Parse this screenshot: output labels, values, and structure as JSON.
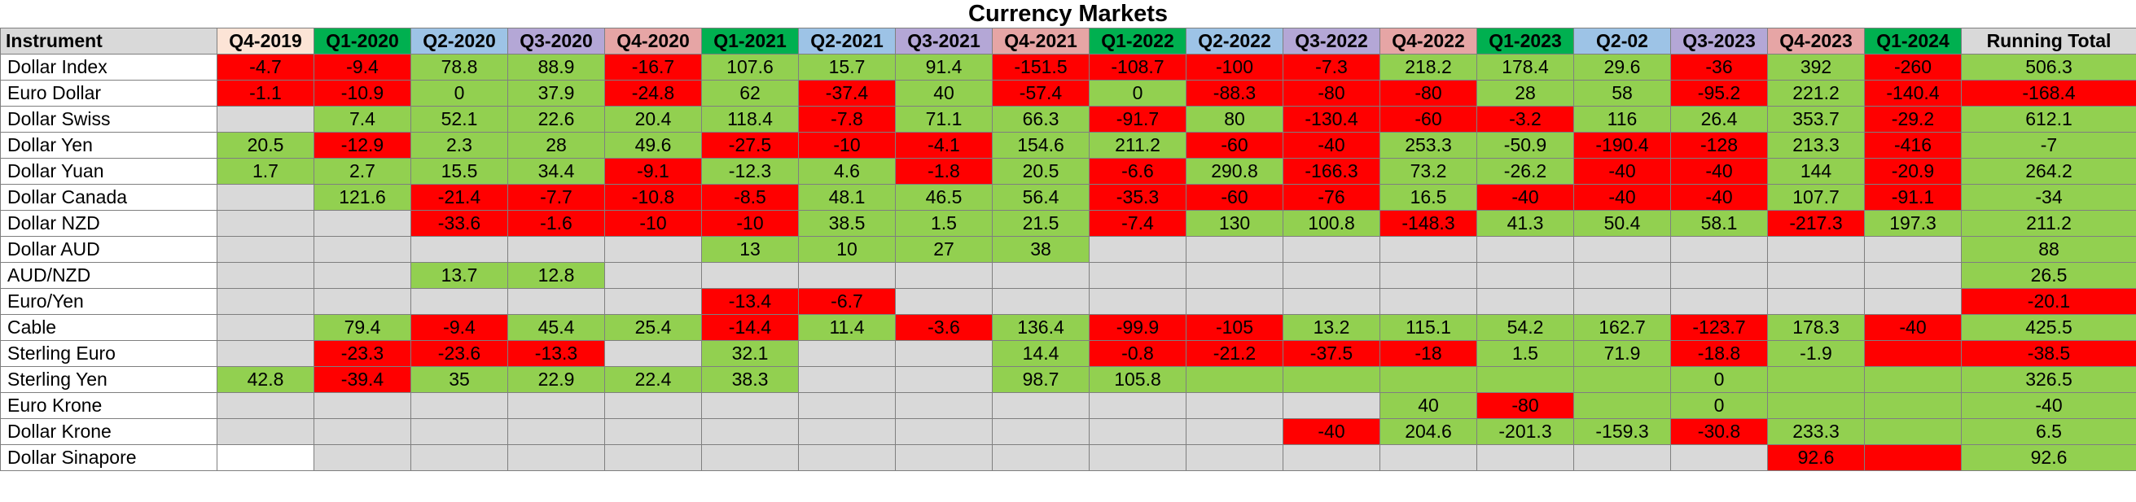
{
  "title": "Currency Markets",
  "header": {
    "instrument": "Instrument",
    "running_total": "Running Total",
    "running_total_color": "#d9d9d9",
    "quarters": [
      {
        "label": "Q4-2019",
        "color": "#fce4d6"
      },
      {
        "label": "Q1-2020",
        "color": "#00b050"
      },
      {
        "label": "Q2-2020",
        "color": "#9dc3e6"
      },
      {
        "label": "Q3-2020",
        "color": "#b4a7d6"
      },
      {
        "label": "Q4-2020",
        "color": "#e6a5a5"
      },
      {
        "label": "Q1-2021",
        "color": "#00b050"
      },
      {
        "label": "Q2-2021",
        "color": "#9dc3e6"
      },
      {
        "label": "Q3-2021",
        "color": "#b4a7d6"
      },
      {
        "label": "Q4-2021",
        "color": "#e6a5a5"
      },
      {
        "label": "Q1-2022",
        "color": "#00b050"
      },
      {
        "label": "Q2-2022",
        "color": "#9dc3e6"
      },
      {
        "label": "Q3-2022",
        "color": "#b4a7d6"
      },
      {
        "label": "Q4-2022",
        "color": "#e6a5a5"
      },
      {
        "label": "Q1-2023",
        "color": "#00b050"
      },
      {
        "label": "Q2-02",
        "color": "#9dc3e6"
      },
      {
        "label": "Q3-2023",
        "color": "#b4a7d6"
      },
      {
        "label": "Q4-2023",
        "color": "#e6a5a5"
      },
      {
        "label": "Q1-2024",
        "color": "#00b050"
      }
    ]
  },
  "rows": [
    {
      "name": "Dollar Index",
      "cells": [
        [
          "-4.7",
          "r"
        ],
        [
          "-9.4",
          "r"
        ],
        [
          "78.8",
          "g"
        ],
        [
          "88.9",
          "g"
        ],
        [
          "-16.7",
          "r"
        ],
        [
          "107.6",
          "g"
        ],
        [
          "15.7",
          "g"
        ],
        [
          "91.4",
          "g"
        ],
        [
          "-151.5",
          "r"
        ],
        [
          "-108.7",
          "r"
        ],
        [
          "-100",
          "r"
        ],
        [
          "-7.3",
          "r"
        ],
        [
          "218.2",
          "g"
        ],
        [
          "178.4",
          "g"
        ],
        [
          "29.6",
          "g"
        ],
        [
          "-36",
          "r"
        ],
        [
          "392",
          "g"
        ],
        [
          "-260",
          "r"
        ]
      ],
      "total": [
        "506.3",
        "g"
      ]
    },
    {
      "name": "Euro Dollar",
      "cells": [
        [
          "-1.1",
          "r"
        ],
        [
          "-10.9",
          "r"
        ],
        [
          "0",
          "g"
        ],
        [
          "37.9",
          "g"
        ],
        [
          "-24.8",
          "r"
        ],
        [
          "62",
          "g"
        ],
        [
          "-37.4",
          "r"
        ],
        [
          "40",
          "g"
        ],
        [
          "-57.4",
          "r"
        ],
        [
          "0",
          "g"
        ],
        [
          "-88.3",
          "r"
        ],
        [
          "-80",
          "r"
        ],
        [
          "-80",
          "r"
        ],
        [
          "28",
          "g"
        ],
        [
          "58",
          "g"
        ],
        [
          "-95.2",
          "r"
        ],
        [
          "221.2",
          "g"
        ],
        [
          "-140.4",
          "r"
        ]
      ],
      "total": [
        "-168.4",
        "r"
      ]
    },
    {
      "name": "Dollar Swiss",
      "cells": [
        [
          "",
          "x"
        ],
        [
          "7.4",
          "g"
        ],
        [
          "52.1",
          "g"
        ],
        [
          "22.6",
          "g"
        ],
        [
          "20.4",
          "g"
        ],
        [
          "118.4",
          "g"
        ],
        [
          "-7.8",
          "r"
        ],
        [
          "71.1",
          "g"
        ],
        [
          "66.3",
          "g"
        ],
        [
          "-91.7",
          "r"
        ],
        [
          "80",
          "g"
        ],
        [
          "-130.4",
          "r"
        ],
        [
          "-60",
          "r"
        ],
        [
          "-3.2",
          "r"
        ],
        [
          "116",
          "g"
        ],
        [
          "26.4",
          "g"
        ],
        [
          "353.7",
          "g"
        ],
        [
          "-29.2",
          "r"
        ]
      ],
      "total": [
        "612.1",
        "g"
      ]
    },
    {
      "name": "Dollar Yen",
      "cells": [
        [
          "20.5",
          "g"
        ],
        [
          "-12.9",
          "r"
        ],
        [
          "2.3",
          "g"
        ],
        [
          "28",
          "g"
        ],
        [
          "49.6",
          "g"
        ],
        [
          "-27.5",
          "r"
        ],
        [
          "-10",
          "r"
        ],
        [
          "-4.1",
          "r"
        ],
        [
          "154.6",
          "g"
        ],
        [
          "211.2",
          "g"
        ],
        [
          "-60",
          "r"
        ],
        [
          "-40",
          "r"
        ],
        [
          "253.3",
          "g"
        ],
        [
          "-50.9",
          "g"
        ],
        [
          "-190.4",
          "r"
        ],
        [
          "-128",
          "r"
        ],
        [
          "213.3",
          "g"
        ],
        [
          "-416",
          "r"
        ]
      ],
      "total": [
        "-7",
        "g"
      ]
    },
    {
      "name": "Dollar Yuan",
      "cells": [
        [
          "1.7",
          "g"
        ],
        [
          "2.7",
          "g"
        ],
        [
          "15.5",
          "g"
        ],
        [
          "34.4",
          "g"
        ],
        [
          "-9.1",
          "r"
        ],
        [
          "-12.3",
          "g"
        ],
        [
          "4.6",
          "g"
        ],
        [
          "-1.8",
          "r"
        ],
        [
          "20.5",
          "g"
        ],
        [
          "-6.6",
          "r"
        ],
        [
          "290.8",
          "g"
        ],
        [
          "-166.3",
          "r"
        ],
        [
          "73.2",
          "g"
        ],
        [
          "-26.2",
          "g"
        ],
        [
          "-40",
          "r"
        ],
        [
          "-40",
          "r"
        ],
        [
          "144",
          "g"
        ],
        [
          "-20.9",
          "r"
        ]
      ],
      "total": [
        "264.2",
        "g"
      ]
    },
    {
      "name": "Dollar Canada",
      "cells": [
        [
          "",
          "x"
        ],
        [
          "121.6",
          "g"
        ],
        [
          "-21.4",
          "r"
        ],
        [
          "-7.7",
          "r"
        ],
        [
          "-10.8",
          "r"
        ],
        [
          "-8.5",
          "r"
        ],
        [
          "48.1",
          "g"
        ],
        [
          "46.5",
          "g"
        ],
        [
          "56.4",
          "g"
        ],
        [
          "-35.3",
          "r"
        ],
        [
          "-60",
          "r"
        ],
        [
          "-76",
          "r"
        ],
        [
          "16.5",
          "g"
        ],
        [
          "-40",
          "r"
        ],
        [
          "-40",
          "r"
        ],
        [
          "-40",
          "r"
        ],
        [
          "107.7",
          "g"
        ],
        [
          "-91.1",
          "r"
        ]
      ],
      "total": [
        "-34",
        "g"
      ]
    },
    {
      "name": "Dollar NZD",
      "cells": [
        [
          "",
          "x"
        ],
        [
          "",
          "x"
        ],
        [
          "-33.6",
          "r"
        ],
        [
          "-1.6",
          "r"
        ],
        [
          "-10",
          "r"
        ],
        [
          "-10",
          "r"
        ],
        [
          "38.5",
          "g"
        ],
        [
          "1.5",
          "g"
        ],
        [
          "21.5",
          "g"
        ],
        [
          "-7.4",
          "r"
        ],
        [
          "130",
          "g"
        ],
        [
          "100.8",
          "g"
        ],
        [
          "-148.3",
          "r"
        ],
        [
          "41.3",
          "g"
        ],
        [
          "50.4",
          "g"
        ],
        [
          "58.1",
          "g"
        ],
        [
          "-217.3",
          "r"
        ],
        [
          "197.3",
          "g"
        ]
      ],
      "total": [
        "211.2",
        "g"
      ]
    },
    {
      "name": "Dollar AUD",
      "cells": [
        [
          "",
          "x"
        ],
        [
          "",
          "x"
        ],
        [
          "",
          "x"
        ],
        [
          "",
          "x"
        ],
        [
          "",
          "x"
        ],
        [
          "13",
          "g"
        ],
        [
          "10",
          "g"
        ],
        [
          "27",
          "g"
        ],
        [
          "38",
          "g"
        ],
        [
          "",
          "x"
        ],
        [
          "",
          "x"
        ],
        [
          "",
          "x"
        ],
        [
          "",
          "x"
        ],
        [
          "",
          "x"
        ],
        [
          "",
          "x"
        ],
        [
          "",
          "x"
        ],
        [
          "",
          "x"
        ],
        [
          "",
          "x"
        ]
      ],
      "total": [
        "88",
        "g"
      ]
    },
    {
      "name": "AUD/NZD",
      "cells": [
        [
          "",
          "x"
        ],
        [
          "",
          "x"
        ],
        [
          "13.7",
          "g"
        ],
        [
          "12.8",
          "g"
        ],
        [
          "",
          "x"
        ],
        [
          "",
          "x"
        ],
        [
          "",
          "x"
        ],
        [
          "",
          "x"
        ],
        [
          "",
          "x"
        ],
        [
          "",
          "x"
        ],
        [
          "",
          "x"
        ],
        [
          "",
          "x"
        ],
        [
          "",
          "x"
        ],
        [
          "",
          "x"
        ],
        [
          "",
          "x"
        ],
        [
          "",
          "x"
        ],
        [
          "",
          "x"
        ],
        [
          "",
          "x"
        ]
      ],
      "total": [
        "26.5",
        "g"
      ]
    },
    {
      "name": "Euro/Yen",
      "cells": [
        [
          "",
          "x"
        ],
        [
          "",
          "x"
        ],
        [
          "",
          "x"
        ],
        [
          "",
          "x"
        ],
        [
          "",
          "x"
        ],
        [
          "-13.4",
          "r"
        ],
        [
          "-6.7",
          "r"
        ],
        [
          "",
          "x"
        ],
        [
          "",
          "x"
        ],
        [
          "",
          "x"
        ],
        [
          "",
          "x"
        ],
        [
          "",
          "x"
        ],
        [
          "",
          "x"
        ],
        [
          "",
          "x"
        ],
        [
          "",
          "x"
        ],
        [
          "",
          "x"
        ],
        [
          "",
          "x"
        ],
        [
          "",
          "x"
        ]
      ],
      "total": [
        "-20.1",
        "r"
      ]
    },
    {
      "name": "Cable",
      "cells": [
        [
          "",
          "x"
        ],
        [
          "79.4",
          "g"
        ],
        [
          "-9.4",
          "r"
        ],
        [
          "45.4",
          "g"
        ],
        [
          "25.4",
          "g"
        ],
        [
          "-14.4",
          "r"
        ],
        [
          "11.4",
          "g"
        ],
        [
          "-3.6",
          "r"
        ],
        [
          "136.4",
          "g"
        ],
        [
          "-99.9",
          "r"
        ],
        [
          "-105",
          "r"
        ],
        [
          "13.2",
          "g"
        ],
        [
          "115.1",
          "g"
        ],
        [
          "54.2",
          "g"
        ],
        [
          "162.7",
          "g"
        ],
        [
          "-123.7",
          "r"
        ],
        [
          "178.3",
          "g"
        ],
        [
          "-40",
          "r"
        ]
      ],
      "total": [
        "425.5",
        "g"
      ]
    },
    {
      "name": "Sterling Euro",
      "cells": [
        [
          "",
          "x"
        ],
        [
          "-23.3",
          "r"
        ],
        [
          "-23.6",
          "r"
        ],
        [
          "-13.3",
          "r"
        ],
        [
          "",
          "x"
        ],
        [
          "32.1",
          "g"
        ],
        [
          "",
          "x"
        ],
        [
          "",
          "x"
        ],
        [
          "14.4",
          "g"
        ],
        [
          "-0.8",
          "r"
        ],
        [
          "-21.2",
          "r"
        ],
        [
          "-37.5",
          "r"
        ],
        [
          "-18",
          "r"
        ],
        [
          "1.5",
          "g"
        ],
        [
          "71.9",
          "g"
        ],
        [
          "-18.8",
          "r"
        ],
        [
          "-1.9",
          "g"
        ],
        [
          "",
          "r"
        ]
      ],
      "total": [
        "-38.5",
        "r"
      ]
    },
    {
      "name": "Sterling Yen",
      "cells": [
        [
          "42.8",
          "g"
        ],
        [
          "-39.4",
          "r"
        ],
        [
          "35",
          "g"
        ],
        [
          "22.9",
          "g"
        ],
        [
          "22.4",
          "g"
        ],
        [
          "38.3",
          "g"
        ],
        [
          "",
          "x"
        ],
        [
          "",
          "x"
        ],
        [
          "98.7",
          "g"
        ],
        [
          "105.8",
          "g"
        ],
        [
          "",
          "g"
        ],
        [
          "",
          "g"
        ],
        [
          "",
          "g"
        ],
        [
          "",
          "g"
        ],
        [
          "",
          "g"
        ],
        [
          "0",
          "g"
        ],
        [
          "",
          "g"
        ],
        [
          "",
          "g"
        ]
      ],
      "total": [
        "326.5",
        "g"
      ]
    },
    {
      "name": "Euro Krone",
      "cells": [
        [
          "",
          "x"
        ],
        [
          "",
          "x"
        ],
        [
          "",
          "x"
        ],
        [
          "",
          "x"
        ],
        [
          "",
          "x"
        ],
        [
          "",
          "x"
        ],
        [
          "",
          "x"
        ],
        [
          "",
          "x"
        ],
        [
          "",
          "x"
        ],
        [
          "",
          "x"
        ],
        [
          "",
          "x"
        ],
        [
          "",
          "x"
        ],
        [
          "40",
          "g"
        ],
        [
          "-80",
          "r"
        ],
        [
          "",
          "g"
        ],
        [
          "0",
          "g"
        ],
        [
          "",
          "g"
        ],
        [
          "",
          "g"
        ]
      ],
      "total": [
        "-40",
        "g"
      ]
    },
    {
      "name": "Dollar Krone",
      "cells": [
        [
          "",
          "x"
        ],
        [
          "",
          "x"
        ],
        [
          "",
          "x"
        ],
        [
          "",
          "x"
        ],
        [
          "",
          "x"
        ],
        [
          "",
          "x"
        ],
        [
          "",
          "x"
        ],
        [
          "",
          "x"
        ],
        [
          "",
          "x"
        ],
        [
          "",
          "x"
        ],
        [
          "",
          "x"
        ],
        [
          "-40",
          "r"
        ],
        [
          "204.6",
          "g"
        ],
        [
          "-201.3",
          "g"
        ],
        [
          "-159.3",
          "g"
        ],
        [
          "-30.8",
          "r"
        ],
        [
          "233.3",
          "g"
        ],
        [
          "",
          "g"
        ]
      ],
      "total": [
        "6.5",
        "g"
      ]
    },
    {
      "name": "Dollar Sinapore",
      "cells": [
        [
          "",
          "w"
        ],
        [
          "",
          "x"
        ],
        [
          "",
          "x"
        ],
        [
          "",
          "x"
        ],
        [
          "",
          "x"
        ],
        [
          "",
          "x"
        ],
        [
          "",
          "x"
        ],
        [
          "",
          "x"
        ],
        [
          "",
          "x"
        ],
        [
          "",
          "x"
        ],
        [
          "",
          "x"
        ],
        [
          "",
          "x"
        ],
        [
          "",
          "x"
        ],
        [
          "",
          "x"
        ],
        [
          "",
          "x"
        ],
        [
          "",
          "x"
        ],
        [
          "92.6",
          "r"
        ],
        [
          "",
          "r"
        ]
      ],
      "total": [
        "92.6",
        "g"
      ]
    }
  ]
}
